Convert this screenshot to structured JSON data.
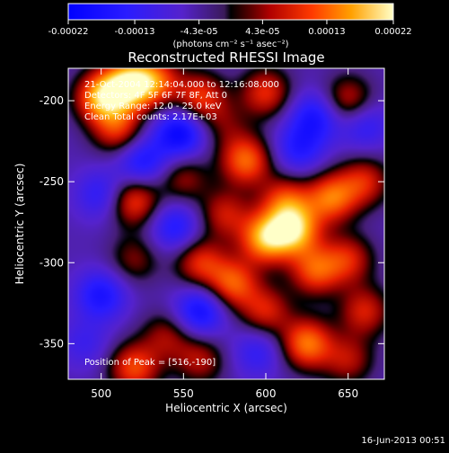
{
  "chart_data": {
    "type": "heatmap",
    "title": "Reconstructed RHESSI Image",
    "xlabel": "Heliocentric X (arcsec)",
    "ylabel": "Heliocentric Y (arcsec)",
    "xlim": [
      480,
      672
    ],
    "ylim": [
      -372,
      -180
    ],
    "x_ticks": [
      500,
      550,
      600,
      650
    ],
    "y_ticks": [
      -200,
      -250,
      -300,
      -350
    ],
    "colorbar": {
      "range": [
        -0.00022,
        0.00022
      ],
      "tick_values": [
        -0.00022,
        -0.00013,
        -4.3e-05,
        4.3e-05,
        0.00013,
        0.00022
      ],
      "tick_labels": [
        "-0.00022",
        "-0.00013",
        "-4.3e-05",
        "4.3e-05",
        "0.00013",
        "0.00022"
      ],
      "unit_label": "(photons cm⁻² s⁻¹ asec⁻²)"
    },
    "info_lines": [
      "21-Oct-2004 12:14:04.000 to 12:16:08.000",
      "Detectors: 4F 5F 6F 7F 8F, Att 0",
      "Energy Range: 12.0 - 25.0 keV",
      "Clean     Total counts: 2.17E+03"
    ],
    "peak_label": "Position of Peak = [516,-190]",
    "blobs": [
      {
        "x": 500,
        "y": -198,
        "v": 0.0002
      },
      {
        "x": 516,
        "y": -190,
        "v": 0.00022
      },
      {
        "x": 532,
        "y": -188,
        "v": 0.00016
      },
      {
        "x": 560,
        "y": -198,
        "v": 0.00014
      },
      {
        "x": 600,
        "y": -195,
        "v": 0.00013
      },
      {
        "x": 650,
        "y": -200,
        "v": 0.00012
      },
      {
        "x": 510,
        "y": -218,
        "v": 0.00013
      },
      {
        "x": 575,
        "y": -215,
        "v": 6e-05
      },
      {
        "x": 588,
        "y": -237,
        "v": 0.00017
      },
      {
        "x": 550,
        "y": -248,
        "v": 9e-05
      },
      {
        "x": 520,
        "y": -262,
        "v": 0.00015
      },
      {
        "x": 575,
        "y": -270,
        "v": 0.00011
      },
      {
        "x": 612,
        "y": -262,
        "v": 0.00014
      },
      {
        "x": 600,
        "y": -285,
        "v": 0.00021
      },
      {
        "x": 618,
        "y": -280,
        "v": 0.0002
      },
      {
        "x": 640,
        "y": -260,
        "v": 0.00017
      },
      {
        "x": 660,
        "y": -250,
        "v": 0.00012
      },
      {
        "x": 560,
        "y": -300,
        "v": 0.00013
      },
      {
        "x": 580,
        "y": -313,
        "v": 0.00016
      },
      {
        "x": 630,
        "y": -305,
        "v": 0.00015
      },
      {
        "x": 650,
        "y": -298,
        "v": 0.00012
      },
      {
        "x": 520,
        "y": -298,
        "v": 8e-05
      },
      {
        "x": 540,
        "y": -345,
        "v": 9e-05
      },
      {
        "x": 600,
        "y": -330,
        "v": 0.00012
      },
      {
        "x": 625,
        "y": -350,
        "v": 0.00018
      },
      {
        "x": 660,
        "y": -330,
        "v": 0.00012
      },
      {
        "x": 520,
        "y": -365,
        "v": 0.00015
      },
      {
        "x": 560,
        "y": -360,
        "v": 0.0001
      },
      {
        "x": 650,
        "y": -360,
        "v": 0.0001
      },
      {
        "x": 525,
        "y": -238,
        "v": -0.00012
      },
      {
        "x": 548,
        "y": -220,
        "v": -0.00016
      },
      {
        "x": 545,
        "y": -278,
        "v": -0.00011
      },
      {
        "x": 500,
        "y": -320,
        "v": -0.00012
      },
      {
        "x": 500,
        "y": -258,
        "v": -9e-05
      },
      {
        "x": 560,
        "y": -330,
        "v": -0.00014
      },
      {
        "x": 620,
        "y": -230,
        "v": -0.0001
      },
      {
        "x": 630,
        "y": -210,
        "v": -0.00012
      },
      {
        "x": 660,
        "y": -215,
        "v": -9e-05
      },
      {
        "x": 595,
        "y": -355,
        "v": -8e-05
      },
      {
        "x": 490,
        "y": -350,
        "v": -6e-05
      }
    ]
  },
  "footer": {
    "timestamp": "16-Jun-2013 00:51"
  }
}
